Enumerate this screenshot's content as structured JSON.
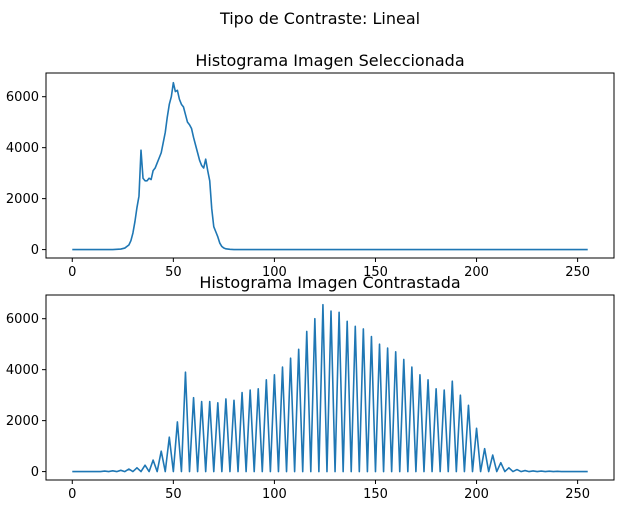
{
  "figure": {
    "suptitle": "Tipo de Contraste: Lineal"
  },
  "colors": {
    "line": "#1f77b4",
    "axes": "#000000",
    "background": "#ffffff"
  },
  "chart_data": [
    {
      "type": "line",
      "title": "Histograma Imagen Seleccionada",
      "xlabel": "",
      "ylabel": "",
      "xlim": [
        -13,
        268
      ],
      "ylim": [
        -330,
        6930
      ],
      "xticks": [
        0,
        50,
        100,
        150,
        200,
        250
      ],
      "yticks": [
        0,
        2000,
        4000,
        6000
      ],
      "grid": false,
      "legend": "none",
      "series": [
        {
          "x": [
            0,
            20,
            24,
            26,
            28,
            29,
            30,
            31,
            32,
            33,
            34,
            35,
            36,
            37,
            38,
            39,
            40,
            41,
            42,
            43,
            44,
            45,
            46,
            47,
            48,
            49,
            50,
            51,
            52,
            53,
            54,
            55,
            56,
            57,
            58,
            59,
            60,
            61,
            62,
            63,
            64,
            65,
            66,
            67,
            68,
            69,
            70,
            71,
            72,
            73,
            74,
            75,
            76,
            78,
            80,
            255
          ],
          "y": [
            0,
            0,
            20,
            60,
            180,
            350,
            650,
            1100,
            1650,
            2100,
            3900,
            2800,
            2700,
            2700,
            2800,
            2750,
            3100,
            3200,
            3400,
            3600,
            3800,
            4200,
            4600,
            5200,
            5700,
            6000,
            6550,
            6200,
            6250,
            5900,
            5700,
            5600,
            5300,
            5000,
            4900,
            4750,
            4400,
            4100,
            3800,
            3500,
            3300,
            3200,
            3550,
            3100,
            2700,
            1600,
            900,
            700,
            500,
            250,
            120,
            60,
            30,
            10,
            0,
            0
          ]
        }
      ]
    },
    {
      "type": "line",
      "title": "Histograma Imagen Contrastada",
      "xlabel": "",
      "ylabel": "",
      "xlim": [
        -13,
        268
      ],
      "ylim": [
        -330,
        6930
      ],
      "xticks": [
        0,
        50,
        100,
        150,
        200,
        250
      ],
      "yticks": [
        0,
        2000,
        4000,
        6000
      ],
      "grid": false,
      "legend": "none",
      "spike_x": [
        16,
        20,
        24,
        28,
        32,
        36,
        40,
        44,
        48,
        52,
        56,
        60,
        64,
        68,
        72,
        76,
        80,
        84,
        88,
        92,
        96,
        100,
        104,
        108,
        112,
        116,
        120,
        124,
        128,
        132,
        136,
        140,
        144,
        148,
        152,
        156,
        160,
        164,
        168,
        172,
        176,
        180,
        184,
        188,
        192,
        196,
        200,
        204,
        208,
        212,
        216,
        220,
        224,
        228,
        232,
        236,
        240
      ],
      "spike_y": [
        20,
        30,
        50,
        100,
        150,
        250,
        450,
        800,
        1350,
        1950,
        3900,
        2900,
        2750,
        2750,
        2700,
        2850,
        2800,
        3100,
        3200,
        3250,
        3600,
        3800,
        4100,
        4450,
        4800,
        5500,
        6000,
        6550,
        6300,
        6250,
        5900,
        5700,
        5600,
        5300,
        5000,
        4850,
        4700,
        4400,
        4100,
        3800,
        3600,
        3250,
        3200,
        3550,
        3000,
        2600,
        1700,
        900,
        650,
        350,
        150,
        80,
        40,
        25,
        20,
        15,
        10
      ],
      "baseline_y": 0,
      "x_end": 255
    }
  ]
}
